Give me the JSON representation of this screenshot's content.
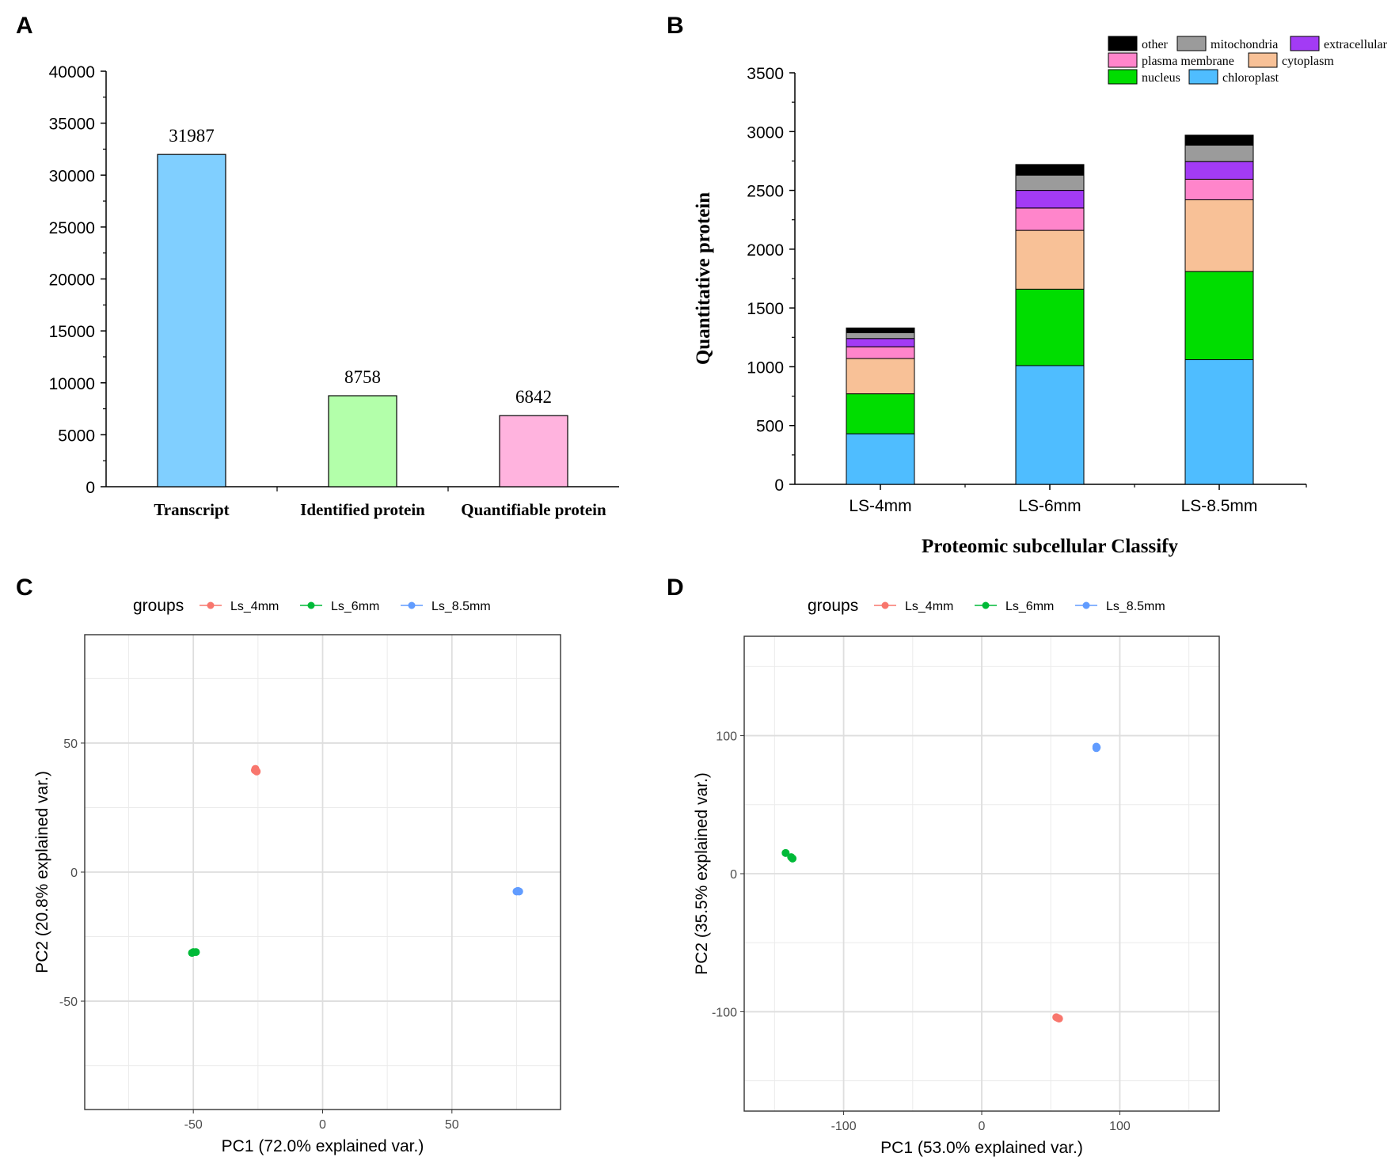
{
  "panels": {
    "a": "A",
    "b": "B",
    "c": "C",
    "d": "D"
  },
  "chart_data": [
    {
      "id": "A",
      "type": "bar",
      "categories": [
        "Transcript",
        "Identified protein",
        "Quantifiable protein"
      ],
      "values": [
        31987,
        8758,
        6842
      ],
      "value_labels": [
        "31987",
        "8758",
        "6842"
      ],
      "colors": [
        "#80CFFF",
        "#B3FFAA",
        "#FFB3DE"
      ],
      "ylim": [
        0,
        40000
      ],
      "yticks": [
        0,
        5000,
        10000,
        15000,
        20000,
        25000,
        30000,
        35000,
        40000
      ],
      "ytick_labels": [
        "0",
        "5000",
        "10000",
        "15000",
        "20000",
        "25000",
        "30000",
        "35000",
        "40000"
      ],
      "title": "",
      "xlabel": "",
      "ylabel": ""
    },
    {
      "id": "B",
      "type": "bar",
      "stacked": true,
      "categories": [
        "LS-4mm",
        "LS-6mm",
        "LS-8.5mm"
      ],
      "series": [
        {
          "name": "chloroplast",
          "color": "#4FBDFF",
          "values": [
            430,
            1010,
            1060
          ]
        },
        {
          "name": "nucleus",
          "color": "#00DD00",
          "values": [
            340,
            650,
            750
          ]
        },
        {
          "name": "cytoplasm",
          "color": "#F8C197",
          "values": [
            300,
            500,
            610
          ]
        },
        {
          "name": "plasma membrane",
          "color": "#FF85CB",
          "values": [
            100,
            190,
            175
          ]
        },
        {
          "name": "extracellular",
          "color": "#A33BF5",
          "values": [
            70,
            150,
            150
          ]
        },
        {
          "name": "mitochondria",
          "color": "#9B9B9B",
          "values": [
            50,
            130,
            140
          ]
        },
        {
          "name": "other",
          "color": "#000000",
          "values": [
            40,
            90,
            85
          ]
        }
      ],
      "legend_rows": [
        [
          "other",
          "mitochondria",
          "extracellular"
        ],
        [
          "plasma membrane",
          "cytoplasm"
        ],
        [
          "nucleus",
          "chloroplast"
        ]
      ],
      "ylim": [
        0,
        3500
      ],
      "yticks": [
        0,
        500,
        1000,
        1500,
        2000,
        2500,
        3000,
        3500
      ],
      "ytick_labels": [
        "0",
        "500",
        "1000",
        "1500",
        "2000",
        "2500",
        "3000",
        "3500"
      ],
      "title": "",
      "xlabel": "Proteomic subcellular Classify",
      "ylabel": "Quantitative protein",
      "legend": "top-right"
    },
    {
      "id": "C",
      "type": "scatter",
      "legend_title": "groups",
      "series": [
        {
          "name": "Ls_4mm",
          "color": "#F8766D",
          "points": [
            [
              -26,
              40
            ],
            [
              -25.5,
              39
            ],
            [
              -26.2,
              39.5
            ]
          ]
        },
        {
          "name": "Ls_6mm",
          "color": "#00BA38",
          "points": [
            [
              -50,
              -31
            ],
            [
              -49,
              -31
            ],
            [
              -50.5,
              -31.3
            ]
          ]
        },
        {
          "name": "Ls_8.5mm",
          "color": "#619CFF",
          "points": [
            [
              75,
              -7.5
            ],
            [
              75.5,
              -7.3
            ],
            [
              76,
              -7.5
            ]
          ]
        }
      ],
      "xlim": [
        -92,
        92
      ],
      "ylim": [
        -92,
        92
      ],
      "xticks": [
        -50,
        0,
        50
      ],
      "xtick_labels": [
        "-50",
        "0",
        "50"
      ],
      "xminor": [
        -75,
        -25,
        25,
        75
      ],
      "yticks": [
        -50,
        0,
        50
      ],
      "ytick_labels": [
        "-50",
        "0",
        "50"
      ],
      "yminor": [
        -75,
        -25,
        25,
        75
      ],
      "xlabel": "PC1 (72.0% explained var.)",
      "ylabel": "PC2 (20.8% explained var.)",
      "grid": true,
      "legend": "top"
    },
    {
      "id": "D",
      "type": "scatter",
      "legend_title": "groups",
      "series": [
        {
          "name": "Ls_4mm",
          "color": "#F8766D",
          "points": [
            [
              54,
              -104
            ],
            [
              56,
              -105
            ],
            [
              55,
              -104.5
            ]
          ]
        },
        {
          "name": "Ls_6mm",
          "color": "#00BA38",
          "points": [
            [
              -142,
              15
            ],
            [
              -138,
              12
            ],
            [
              -137,
              11
            ]
          ]
        },
        {
          "name": "Ls_8.5mm",
          "color": "#619CFF",
          "points": [
            [
              83,
              91
            ],
            [
              83,
              92
            ],
            [
              83.3,
              91.5
            ]
          ]
        }
      ],
      "xlim": [
        -172,
        172
      ],
      "ylim": [
        -172,
        172
      ],
      "xticks": [
        -100,
        0,
        100
      ],
      "xtick_labels": [
        "-100",
        "0",
        "100"
      ],
      "xminor": [
        -150,
        -50,
        50,
        150
      ],
      "yticks": [
        -100,
        0,
        100
      ],
      "ytick_labels": [
        "-100",
        "0",
        "100"
      ],
      "yminor": [
        -150,
        -50,
        50,
        150
      ],
      "xlabel": "PC1 (53.0% explained var.)",
      "ylabel": "PC2 (35.5% explained var.)",
      "grid": true,
      "legend": "top"
    }
  ]
}
